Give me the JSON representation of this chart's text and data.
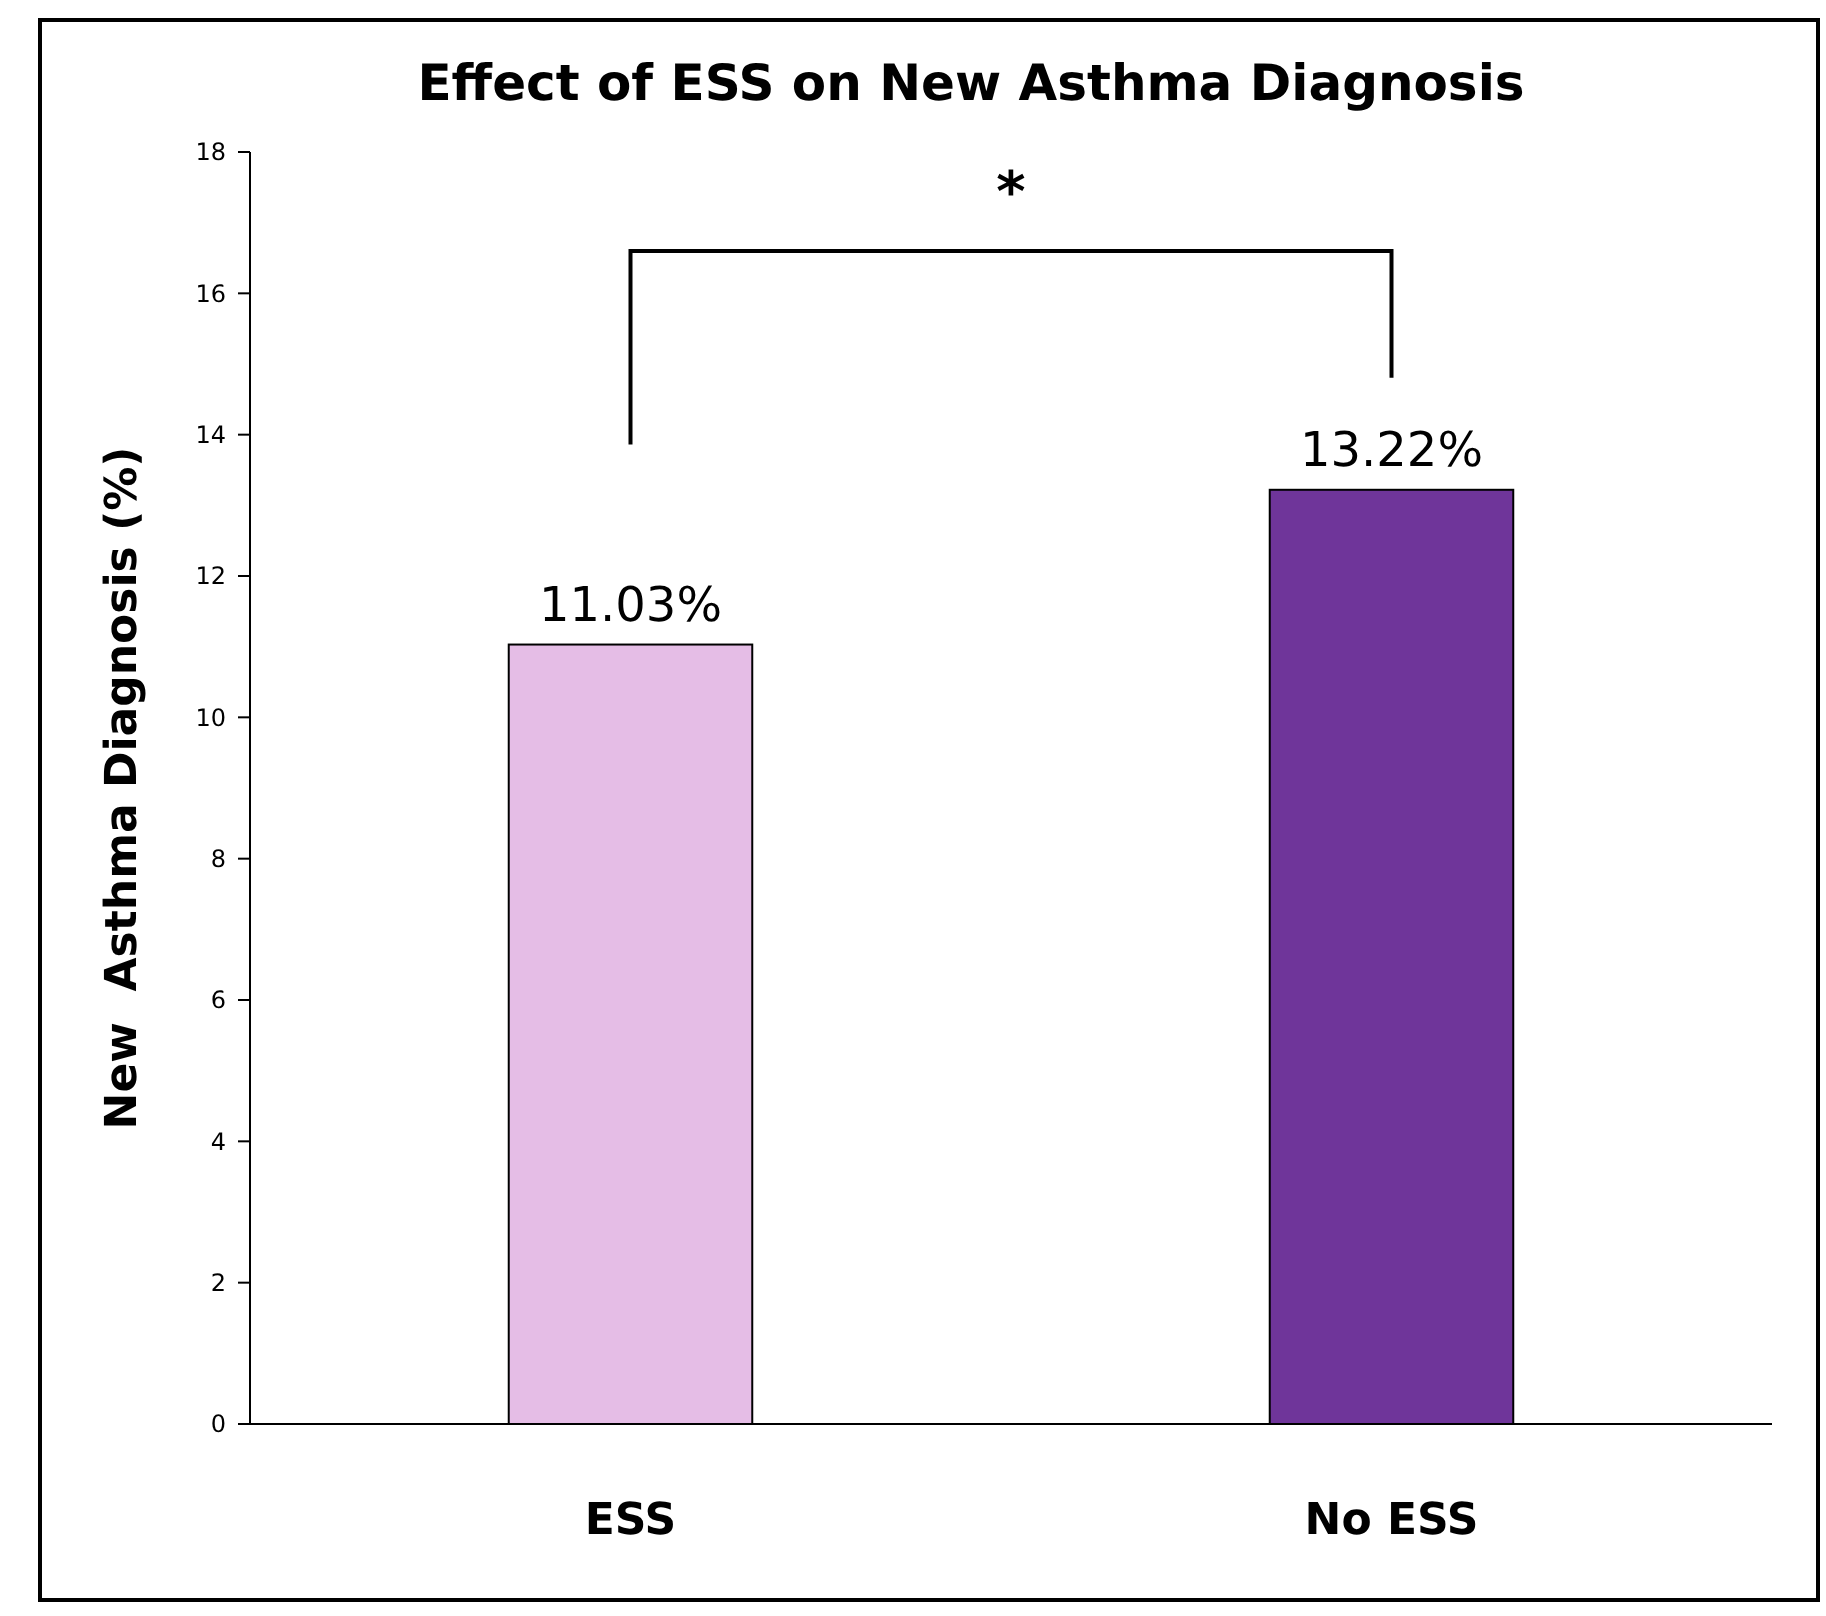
{
  "chart_data": {
    "type": "bar",
    "title": "Effect of ESS on New Asthma Diagnosis",
    "ylabel": "New  Asthma Diagnosis (%)",
    "categories": [
      "ESS",
      "No ESS"
    ],
    "values": [
      11.03,
      13.22
    ],
    "colors": [
      "#e5bde6",
      "#6f359a"
    ],
    "value_labels": [
      "11.03%",
      "13.22%"
    ],
    "ylim": [
      0,
      18
    ],
    "yticks": [
      0,
      2,
      4,
      6,
      8,
      10,
      12,
      14,
      16,
      18
    ],
    "grid": false,
    "annotations": [
      "*"
    ]
  }
}
